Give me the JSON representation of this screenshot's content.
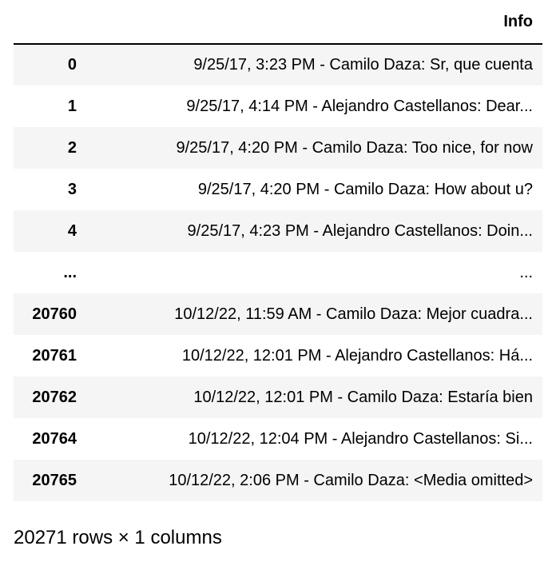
{
  "table": {
    "index_header": "",
    "columns": [
      "Info"
    ],
    "rows": [
      {
        "index": "0",
        "value": "9/25/17, 3:23 PM - Camilo Daza: Sr, que cuenta"
      },
      {
        "index": "1",
        "value": "9/25/17, 4:14 PM - Alejandro Castellanos: Dear..."
      },
      {
        "index": "2",
        "value": "9/25/17, 4:20 PM - Camilo Daza: Too nice, for now"
      },
      {
        "index": "3",
        "value": "9/25/17, 4:20 PM - Camilo Daza: How about u?"
      },
      {
        "index": "4",
        "value": "9/25/17, 4:23 PM - Alejandro Castellanos: Doin..."
      },
      {
        "index": "...",
        "value": "..."
      },
      {
        "index": "20760",
        "value": "10/12/22, 11:59 AM - Camilo Daza: Mejor cuadra..."
      },
      {
        "index": "20761",
        "value": "10/12/22, 12:01 PM - Alejandro Castellanos: Há..."
      },
      {
        "index": "20762",
        "value": "10/12/22, 12:01 PM - Camilo Daza: Estaría bien"
      },
      {
        "index": "20764",
        "value": "10/12/22, 12:04 PM - Alejandro Castellanos: Si..."
      },
      {
        "index": "20765",
        "value": "10/12/22, 2:06 PM - Camilo Daza: <Media omitted>"
      }
    ]
  },
  "shape_note": "20271 rows × 1 columns"
}
